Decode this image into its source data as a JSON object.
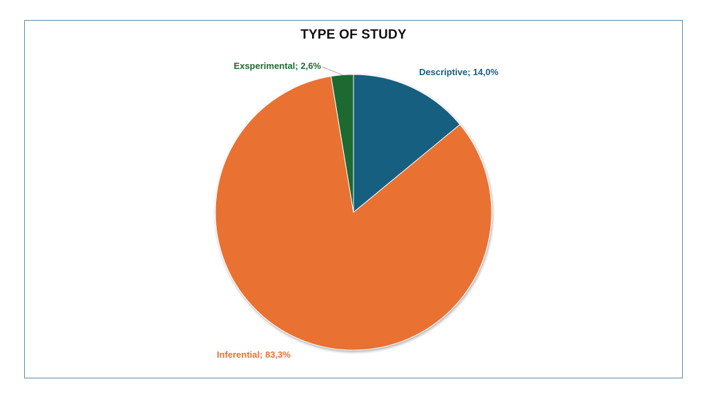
{
  "chart_data": {
    "type": "pie",
    "title": "TYPE OF STUDY",
    "categories": [
      "Descriptive",
      "Inferential",
      "Exsperimental"
    ],
    "values": [
      14.0,
      83.3,
      2.6
    ],
    "labels": [
      "Descriptive; 14,0%",
      "Inferential; 83,3%",
      "Exsperimental; 2,6%"
    ],
    "colors": [
      "#175e80",
      "#e97132",
      "#1e6b31"
    ],
    "legend": "none"
  }
}
